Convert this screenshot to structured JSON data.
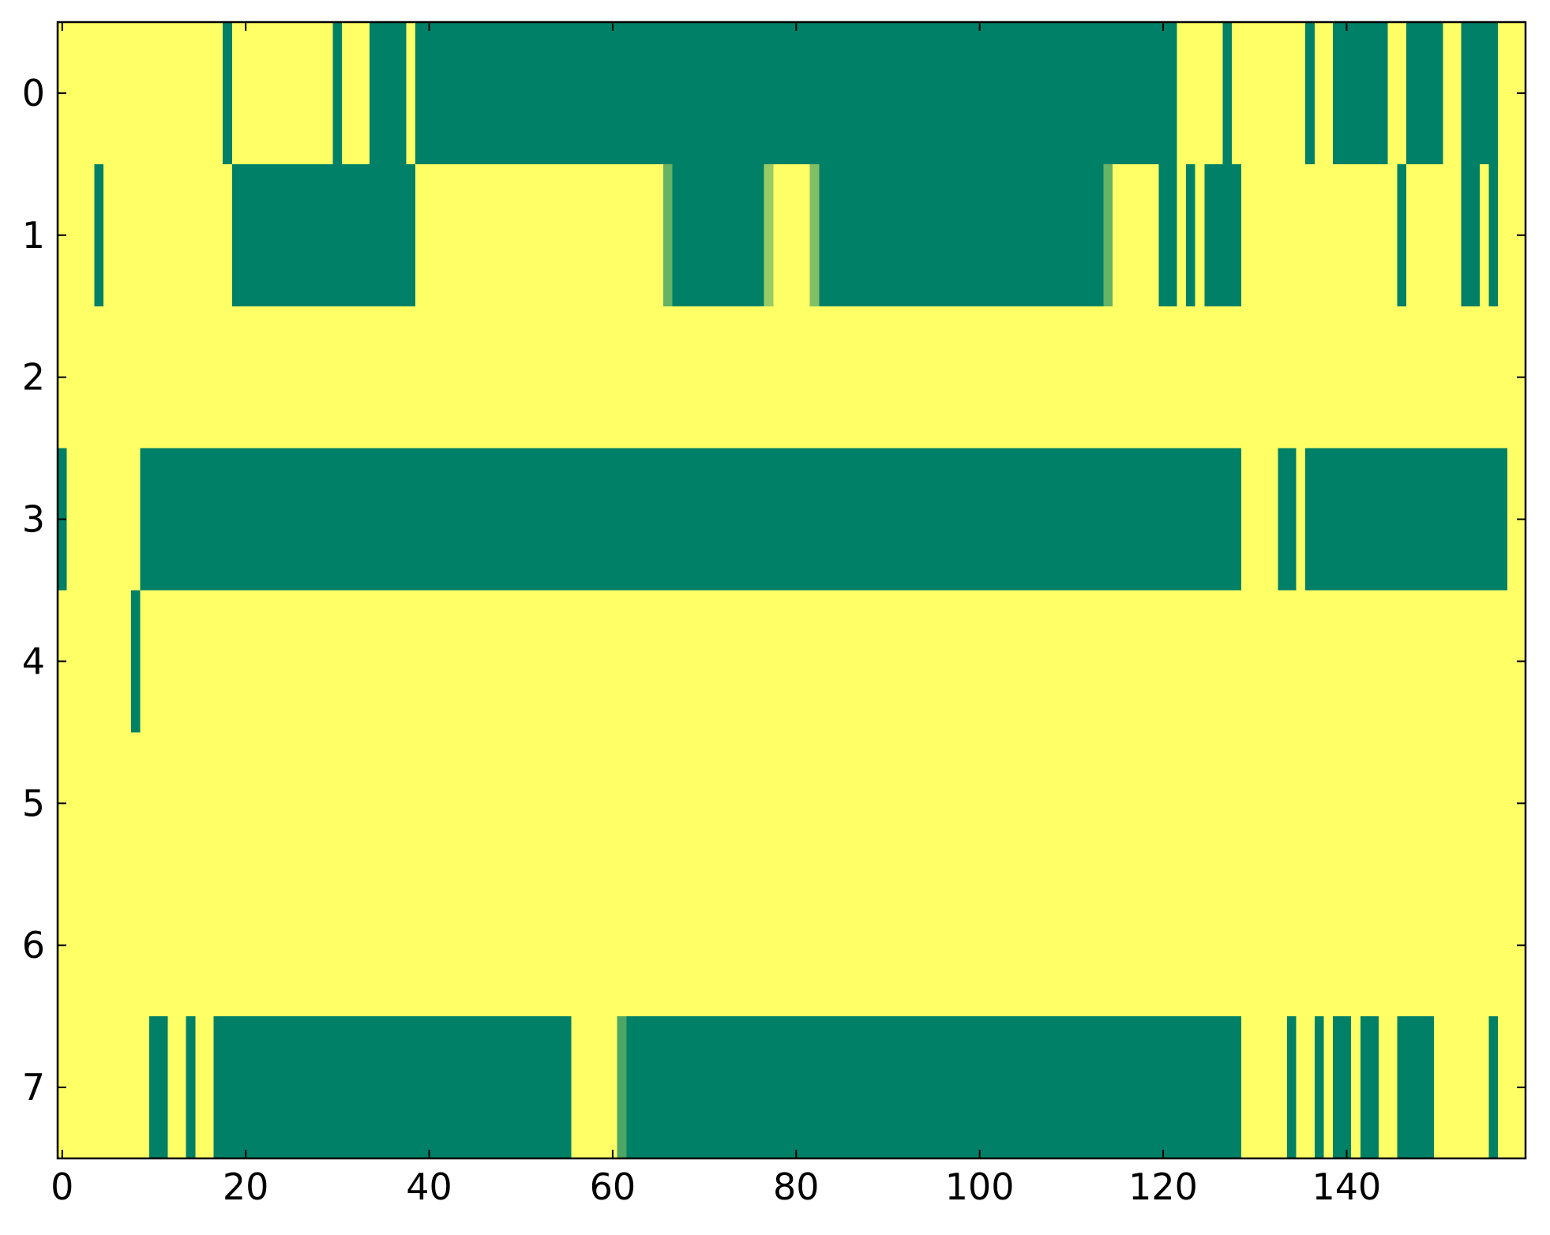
{
  "chart_data": {
    "type": "heatmap",
    "colormap": "summer",
    "xlim": [
      -0.5,
      159.5
    ],
    "ylim": [
      7.5,
      -0.5
    ],
    "xticks": [
      0,
      20,
      40,
      60,
      80,
      100,
      120,
      140
    ],
    "yticks": [
      0,
      1,
      2,
      3,
      4,
      5,
      6,
      7
    ],
    "values": [
      [
        1,
        1,
        1,
        1,
        1,
        1,
        1,
        1,
        1,
        1,
        1,
        1,
        1,
        1,
        1,
        1,
        1,
        1,
        0,
        1,
        1,
        1,
        1,
        1,
        1,
        1,
        1,
        1,
        1,
        1,
        0,
        1,
        1,
        1,
        0,
        0,
        0,
        0,
        1,
        0,
        0,
        0,
        0,
        0,
        0,
        0,
        0,
        0,
        0,
        0,
        0,
        0,
        0,
        0,
        0,
        0,
        0,
        0,
        0,
        0,
        0,
        0,
        0,
        0,
        0,
        0,
        0,
        0,
        0,
        0,
        0,
        0,
        0,
        0,
        0,
        0,
        0,
        0,
        0,
        0,
        0,
        0,
        0,
        0,
        0,
        0,
        0,
        0,
        0,
        0,
        0,
        0,
        0,
        0,
        0,
        0,
        0,
        0,
        0,
        0,
        0,
        0,
        0,
        0,
        0,
        0,
        0,
        0,
        0,
        0,
        0,
        0,
        0,
        0,
        0,
        0,
        0,
        0,
        0,
        0,
        0,
        0,
        1,
        1,
        1,
        1,
        1,
        0,
        1,
        1,
        1,
        1,
        1,
        1,
        1,
        1,
        0,
        1,
        1,
        0,
        0,
        0,
        0,
        0,
        0,
        1,
        1,
        0,
        0,
        0,
        0,
        1,
        1,
        0,
        0,
        0,
        0,
        1,
        1,
        1
      ],
      [
        1,
        1,
        1,
        1,
        0,
        1,
        1,
        1,
        1,
        1,
        1,
        1,
        1,
        1,
        1,
        1,
        1,
        1,
        1,
        0,
        0,
        0,
        0,
        0,
        0,
        0,
        0,
        0,
        0,
        0,
        0,
        0,
        0,
        0,
        0,
        0,
        0,
        0,
        0,
        1,
        1,
        1,
        1,
        1,
        1,
        1,
        1,
        1,
        1,
        1,
        1,
        1,
        1,
        1,
        1,
        1,
        1,
        1,
        1,
        1,
        1,
        1,
        1,
        1,
        1,
        1,
        0.4,
        0,
        0,
        0,
        0,
        0,
        0,
        0,
        0,
        0,
        0,
        0.6,
        1,
        1,
        1,
        1,
        0.5,
        0,
        0,
        0,
        0,
        0,
        0,
        0,
        0,
        0,
        0,
        0,
        0,
        0,
        0,
        0,
        0,
        0,
        0,
        0,
        0,
        0,
        0,
        0,
        0,
        0,
        0,
        0,
        0,
        0,
        0,
        0,
        0.4,
        1,
        1,
        1,
        1,
        1,
        0,
        0,
        1,
        0,
        1,
        0,
        0,
        0,
        0,
        1,
        1,
        1,
        1,
        1,
        1,
        1,
        1,
        1,
        1,
        1,
        1,
        1,
        1,
        1,
        1,
        1,
        0,
        1,
        1,
        1,
        1,
        1,
        1,
        0,
        0,
        1,
        0,
        1,
        1,
        1
      ],
      [
        1,
        1,
        1,
        1,
        1,
        1,
        1,
        1,
        1,
        1,
        1,
        1,
        1,
        1,
        1,
        1,
        1,
        1,
        1,
        1,
        1,
        1,
        1,
        1,
        1,
        1,
        1,
        1,
        1,
        1,
        1,
        1,
        1,
        1,
        1,
        1,
        1,
        1,
        1,
        1,
        1,
        1,
        1,
        1,
        1,
        1,
        1,
        1,
        1,
        1,
        1,
        1,
        1,
        1,
        1,
        1,
        1,
        1,
        1,
        1,
        1,
        1,
        1,
        1,
        1,
        1,
        1,
        1,
        1,
        1,
        1,
        1,
        1,
        1,
        1,
        1,
        1,
        1,
        1,
        1,
        1,
        1,
        1,
        1,
        1,
        1,
        1,
        1,
        1,
        1,
        1,
        1,
        1,
        1,
        1,
        1,
        1,
        1,
        1,
        1,
        1,
        1,
        1,
        1,
        1,
        1,
        1,
        1,
        1,
        1,
        1,
        1,
        1,
        1,
        1,
        1,
        1,
        1,
        1,
        1,
        1,
        1,
        1,
        1,
        1,
        1,
        1,
        1,
        1,
        1,
        1,
        1,
        1,
        1,
        1,
        1,
        1,
        1,
        1,
        1,
        1,
        1,
        1,
        1,
        1,
        1,
        1,
        1,
        1,
        1,
        1,
        1,
        1,
        1,
        1,
        1,
        1,
        1,
        1,
        1
      ],
      [
        0,
        1,
        1,
        1,
        1,
        1,
        1,
        1,
        1,
        0,
        0,
        0,
        0,
        0,
        0,
        0,
        0,
        0,
        0,
        0,
        0,
        0,
        0,
        0,
        0,
        0,
        0,
        0,
        0,
        0,
        0,
        0,
        0,
        0,
        0,
        0,
        0,
        0,
        0,
        0,
        0,
        0,
        0,
        0,
        0,
        0,
        0,
        0,
        0,
        0,
        0,
        0,
        0,
        0,
        0,
        0,
        0,
        0,
        0,
        0,
        0,
        0,
        0,
        0,
        0,
        0,
        0,
        0,
        0,
        0,
        0,
        0,
        0,
        0,
        0,
        0,
        0,
        0,
        0,
        0,
        0,
        0,
        0,
        0,
        0,
        0,
        0,
        0,
        0,
        0,
        0,
        0,
        0,
        0,
        0,
        0,
        0,
        0,
        0,
        0,
        0,
        0,
        0,
        0,
        0,
        0,
        0,
        0,
        0,
        0,
        0,
        0,
        0,
        0,
        0,
        0,
        0,
        0,
        0,
        0,
        0,
        0,
        0,
        0,
        0,
        0,
        0,
        0,
        0,
        1,
        1,
        1,
        1,
        0,
        0,
        1,
        0,
        0,
        0,
        0,
        0,
        0,
        0,
        0,
        0,
        0,
        0,
        0,
        0,
        0,
        0,
        0,
        0,
        0,
        0,
        0,
        0,
        0,
        1,
        1
      ],
      [
        1,
        1,
        1,
        1,
        1,
        1,
        1,
        1,
        0,
        1,
        1,
        1,
        1,
        1,
        1,
        1,
        1,
        1,
        1,
        1,
        1,
        1,
        1,
        1,
        1,
        1,
        1,
        1,
        1,
        1,
        1,
        1,
        1,
        1,
        1,
        1,
        1,
        1,
        1,
        1,
        1,
        1,
        1,
        1,
        1,
        1,
        1,
        1,
        1,
        1,
        1,
        1,
        1,
        1,
        1,
        1,
        1,
        1,
        1,
        1,
        1,
        1,
        1,
        1,
        1,
        1,
        1,
        1,
        1,
        1,
        1,
        1,
        1,
        1,
        1,
        1,
        1,
        1,
        1,
        1,
        1,
        1,
        1,
        1,
        1,
        1,
        1,
        1,
        1,
        1,
        1,
        1,
        1,
        1,
        1,
        1,
        1,
        1,
        1,
        1,
        1,
        1,
        1,
        1,
        1,
        1,
        1,
        1,
        1,
        1,
        1,
        1,
        1,
        1,
        1,
        1,
        1,
        1,
        1,
        1,
        1,
        1,
        1,
        1,
        1,
        1,
        1,
        1,
        1,
        1,
        1,
        1,
        1,
        1,
        1,
        1,
        1,
        1,
        1,
        1,
        1,
        1,
        1,
        1,
        1,
        1,
        1,
        1,
        1,
        1,
        1,
        1,
        1,
        1,
        1,
        1,
        1,
        1,
        1,
        1
      ],
      [
        1,
        1,
        1,
        1,
        1,
        1,
        1,
        1,
        1,
        1,
        1,
        1,
        1,
        1,
        1,
        1,
        1,
        1,
        1,
        1,
        1,
        1,
        1,
        1,
        1,
        1,
        1,
        1,
        1,
        1,
        1,
        1,
        1,
        1,
        1,
        1,
        1,
        1,
        1,
        1,
        1,
        1,
        1,
        1,
        1,
        1,
        1,
        1,
        1,
        1,
        1,
        1,
        1,
        1,
        1,
        1,
        1,
        1,
        1,
        1,
        1,
        1,
        1,
        1,
        1,
        1,
        1,
        1,
        1,
        1,
        1,
        1,
        1,
        1,
        1,
        1,
        1,
        1,
        1,
        1,
        1,
        1,
        1,
        1,
        1,
        1,
        1,
        1,
        1,
        1,
        1,
        1,
        1,
        1,
        1,
        1,
        1,
        1,
        1,
        1,
        1,
        1,
        1,
        1,
        1,
        1,
        1,
        1,
        1,
        1,
        1,
        1,
        1,
        1,
        1,
        1,
        1,
        1,
        1,
        1,
        1,
        1,
        1,
        1,
        1,
        1,
        1,
        1,
        1,
        1,
        1,
        1,
        1,
        1,
        1,
        1,
        1,
        1,
        1,
        1,
        1,
        1,
        1,
        1,
        1,
        1,
        1,
        1,
        1,
        1,
        1,
        1,
        1,
        1,
        1,
        1,
        1,
        1,
        1,
        1
      ],
      [
        1,
        1,
        1,
        1,
        1,
        1,
        1,
        1,
        1,
        1,
        1,
        1,
        1,
        1,
        1,
        1,
        1,
        1,
        1,
        1,
        1,
        1,
        1,
        1,
        1,
        1,
        1,
        1,
        1,
        1,
        1,
        1,
        1,
        1,
        1,
        1,
        1,
        1,
        1,
        1,
        1,
        1,
        1,
        1,
        1,
        1,
        1,
        1,
        1,
        1,
        1,
        1,
        1,
        1,
        1,
        1,
        1,
        1,
        1,
        1,
        1,
        1,
        1,
        1,
        1,
        1,
        1,
        1,
        1,
        1,
        1,
        1,
        1,
        1,
        1,
        1,
        1,
        1,
        1,
        1,
        1,
        1,
        1,
        1,
        1,
        1,
        1,
        1,
        1,
        1,
        1,
        1,
        1,
        1,
        1,
        1,
        1,
        1,
        1,
        1,
        1,
        1,
        1,
        1,
        1,
        1,
        1,
        1,
        1,
        1,
        1,
        1,
        1,
        1,
        1,
        1,
        1,
        1,
        1,
        1,
        1,
        1,
        1,
        1,
        1,
        1,
        1,
        1,
        1,
        1,
        1,
        1,
        1,
        1,
        1,
        1,
        1,
        1,
        1,
        1,
        1,
        1,
        1,
        1,
        1,
        1,
        1,
        1,
        1,
        1,
        1,
        1,
        1,
        1,
        1,
        1,
        1,
        1,
        1,
        1
      ],
      [
        1,
        1,
        1,
        1,
        1,
        1,
        1,
        1,
        1,
        1,
        0,
        0,
        1,
        1,
        0,
        1,
        1,
        0,
        0,
        0,
        0,
        0,
        0,
        0,
        0,
        0,
        0,
        0,
        0,
        0,
        0,
        0,
        0,
        0,
        0,
        0,
        0,
        0,
        0,
        0,
        0,
        0,
        0,
        0,
        0,
        0,
        0,
        0,
        0,
        0,
        0,
        0,
        0,
        0,
        0,
        0,
        1,
        1,
        1,
        1,
        1,
        0.3,
        0,
        0,
        0,
        0,
        0,
        0,
        0,
        0,
        0,
        0,
        0,
        0,
        0,
        0,
        0,
        0,
        0,
        0,
        0,
        0,
        0,
        0,
        0,
        0,
        0,
        0,
        0,
        0,
        0,
        0,
        0,
        0,
        0,
        0,
        0,
        0,
        0,
        0,
        0,
        0,
        0,
        0,
        0,
        0,
        0,
        0,
        0,
        0,
        0,
        0,
        0,
        0,
        0,
        0,
        0,
        0,
        0,
        0,
        0,
        0,
        0,
        0,
        0,
        0,
        0,
        0,
        0,
        1,
        1,
        1,
        1,
        1,
        0,
        1,
        1,
        0,
        1,
        0,
        0,
        1,
        0,
        0,
        1,
        1,
        0,
        0,
        0,
        0,
        1,
        1,
        1,
        1,
        1,
        1,
        0,
        1,
        1,
        1
      ]
    ]
  }
}
